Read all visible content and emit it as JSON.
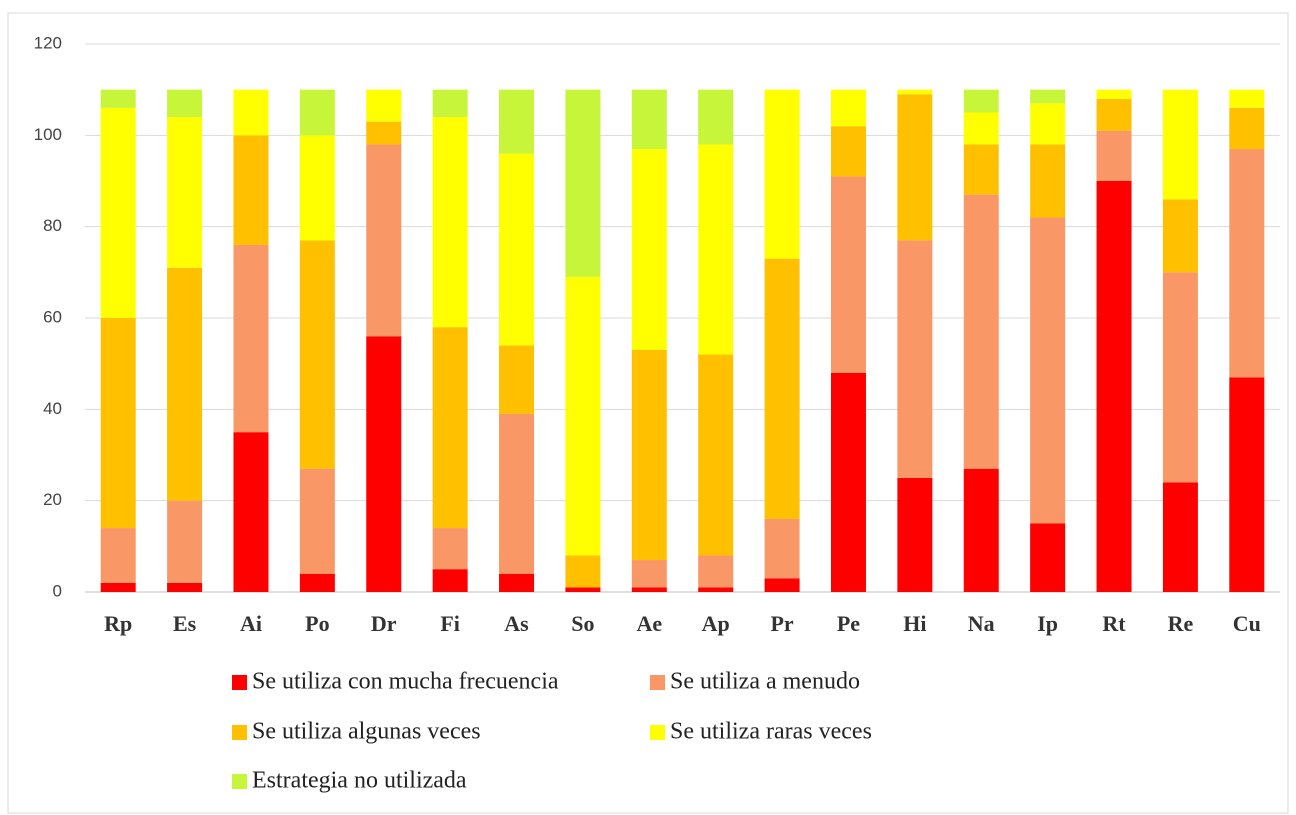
{
  "chart_data": {
    "type": "stacked_bar",
    "categories": [
      "Rp",
      "Es",
      "Ai",
      "Po",
      "Dr",
      "Fi",
      "As",
      "So",
      "Ae",
      "Ap",
      "Pr",
      "Pe",
      "Hi",
      "Na",
      "Ip",
      "Rt",
      "Re",
      "Cu"
    ],
    "series": [
      {
        "name": "Se utiliza con mucha frecuencia",
        "color": "#ff0000",
        "values": [
          2,
          2,
          35,
          4,
          56,
          5,
          4,
          1,
          1,
          1,
          3,
          48,
          25,
          27,
          15,
          90,
          24,
          47
        ]
      },
      {
        "name": "Se utiliza a menudo",
        "color": "#f99866",
        "values": [
          12,
          18,
          41,
          23,
          42,
          9,
          35,
          0,
          6,
          7,
          13,
          43,
          52,
          60,
          67,
          11,
          46,
          50
        ]
      },
      {
        "name": "Se utiliza algunas veces",
        "color": "#ffc000",
        "values": [
          46,
          51,
          24,
          50,
          5,
          44,
          15,
          7,
          46,
          44,
          57,
          11,
          32,
          11,
          16,
          7,
          16,
          9
        ]
      },
      {
        "name": "Se utiliza raras veces",
        "color": "#ffff00",
        "values": [
          46,
          33,
          10,
          23,
          7,
          46,
          42,
          61,
          44,
          46,
          37,
          8,
          1,
          7,
          9,
          2,
          24,
          4
        ]
      },
      {
        "name": "Estrategia no utilizada",
        "color": "#c6f53a",
        "values": [
          4,
          6,
          0,
          10,
          0,
          6,
          14,
          41,
          13,
          12,
          0,
          0,
          0,
          5,
          3,
          0,
          0,
          0
        ]
      }
    ],
    "ylim": [
      0,
      120
    ],
    "yticks": [
      0,
      20,
      40,
      60,
      80,
      100,
      120
    ],
    "grid": true
  }
}
